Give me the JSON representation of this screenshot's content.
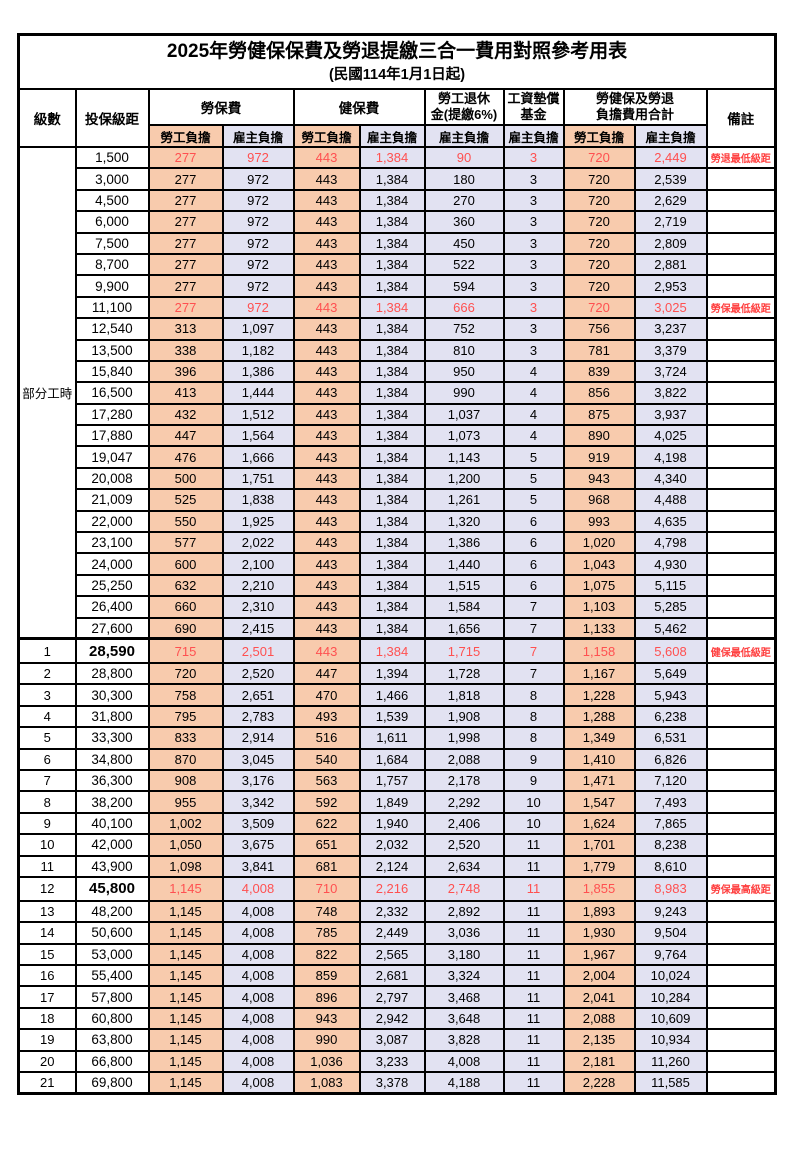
{
  "title": {
    "main": "2025年勞健保保費及勞退提繳三合一費用對照參考用表",
    "sub": "(民國114年1月1日起)"
  },
  "header": {
    "level": "級數",
    "bracket": "投保級距",
    "labor_ins": "勞保費",
    "health_ins": "健保費",
    "pension_l1": "勞工退休",
    "pension_l2": "金(提繳6%)",
    "wage_l1": "工資墊償",
    "wage_l2": "基金",
    "total_l1": "勞健保及勞退",
    "total_l2": "負擔費用合計",
    "remark": "備註",
    "employee": "勞工負擔",
    "employer": "雇主負擔"
  },
  "part_time_label": "部分工時",
  "part_time_rowspan": 23,
  "colors": {
    "employee_bg": "#F8CBAD",
    "employer_bg": "#E2E2F2",
    "highlight_number": "#FF5050",
    "remark_text": "#FF4040",
    "border": "#000000"
  },
  "rows": [
    {
      "level": "",
      "bracket": "1,500",
      "values": [
        "277",
        "972",
        "443",
        "1,384",
        "90",
        "3",
        "720",
        "2,449"
      ],
      "remark": "勞退最低級距",
      "red": true
    },
    {
      "level": "",
      "bracket": "3,000",
      "values": [
        "277",
        "972",
        "443",
        "1,384",
        "180",
        "3",
        "720",
        "2,539"
      ],
      "remark": ""
    },
    {
      "level": "",
      "bracket": "4,500",
      "values": [
        "277",
        "972",
        "443",
        "1,384",
        "270",
        "3",
        "720",
        "2,629"
      ],
      "remark": ""
    },
    {
      "level": "",
      "bracket": "6,000",
      "values": [
        "277",
        "972",
        "443",
        "1,384",
        "360",
        "3",
        "720",
        "2,719"
      ],
      "remark": ""
    },
    {
      "level": "",
      "bracket": "7,500",
      "values": [
        "277",
        "972",
        "443",
        "1,384",
        "450",
        "3",
        "720",
        "2,809"
      ],
      "remark": ""
    },
    {
      "level": "",
      "bracket": "8,700",
      "values": [
        "277",
        "972",
        "443",
        "1,384",
        "522",
        "3",
        "720",
        "2,881"
      ],
      "remark": ""
    },
    {
      "level": "",
      "bracket": "9,900",
      "values": [
        "277",
        "972",
        "443",
        "1,384",
        "594",
        "3",
        "720",
        "2,953"
      ],
      "remark": ""
    },
    {
      "level": "",
      "bracket": "11,100",
      "values": [
        "277",
        "972",
        "443",
        "1,384",
        "666",
        "3",
        "720",
        "3,025"
      ],
      "remark": "勞保最低級距",
      "red": true
    },
    {
      "level": "",
      "bracket": "12,540",
      "values": [
        "313",
        "1,097",
        "443",
        "1,384",
        "752",
        "3",
        "756",
        "3,237"
      ],
      "remark": ""
    },
    {
      "level": "",
      "bracket": "13,500",
      "values": [
        "338",
        "1,182",
        "443",
        "1,384",
        "810",
        "3",
        "781",
        "3,379"
      ],
      "remark": ""
    },
    {
      "level": "",
      "bracket": "15,840",
      "values": [
        "396",
        "1,386",
        "443",
        "1,384",
        "950",
        "4",
        "839",
        "3,724"
      ],
      "remark": ""
    },
    {
      "level": "",
      "bracket": "16,500",
      "values": [
        "413",
        "1,444",
        "443",
        "1,384",
        "990",
        "4",
        "856",
        "3,822"
      ],
      "remark": ""
    },
    {
      "level": "",
      "bracket": "17,280",
      "values": [
        "432",
        "1,512",
        "443",
        "1,384",
        "1,037",
        "4",
        "875",
        "3,937"
      ],
      "remark": ""
    },
    {
      "level": "",
      "bracket": "17,880",
      "values": [
        "447",
        "1,564",
        "443",
        "1,384",
        "1,073",
        "4",
        "890",
        "4,025"
      ],
      "remark": ""
    },
    {
      "level": "",
      "bracket": "19,047",
      "values": [
        "476",
        "1,666",
        "443",
        "1,384",
        "1,143",
        "5",
        "919",
        "4,198"
      ],
      "remark": ""
    },
    {
      "level": "",
      "bracket": "20,008",
      "values": [
        "500",
        "1,751",
        "443",
        "1,384",
        "1,200",
        "5",
        "943",
        "4,340"
      ],
      "remark": ""
    },
    {
      "level": "",
      "bracket": "21,009",
      "values": [
        "525",
        "1,838",
        "443",
        "1,384",
        "1,261",
        "5",
        "968",
        "4,488"
      ],
      "remark": ""
    },
    {
      "level": "",
      "bracket": "22,000",
      "values": [
        "550",
        "1,925",
        "443",
        "1,384",
        "1,320",
        "6",
        "993",
        "4,635"
      ],
      "remark": ""
    },
    {
      "level": "",
      "bracket": "23,100",
      "values": [
        "577",
        "2,022",
        "443",
        "1,384",
        "1,386",
        "6",
        "1,020",
        "4,798"
      ],
      "remark": ""
    },
    {
      "level": "",
      "bracket": "24,000",
      "values": [
        "600",
        "2,100",
        "443",
        "1,384",
        "1,440",
        "6",
        "1,043",
        "4,930"
      ],
      "remark": ""
    },
    {
      "level": "",
      "bracket": "25,250",
      "values": [
        "632",
        "2,210",
        "443",
        "1,384",
        "1,515",
        "6",
        "1,075",
        "5,115"
      ],
      "remark": ""
    },
    {
      "level": "",
      "bracket": "26,400",
      "values": [
        "660",
        "2,310",
        "443",
        "1,384",
        "1,584",
        "7",
        "1,103",
        "5,285"
      ],
      "remark": ""
    },
    {
      "level": "",
      "bracket": "27,600",
      "values": [
        "690",
        "2,415",
        "443",
        "1,384",
        "1,656",
        "7",
        "1,133",
        "5,462"
      ],
      "remark": ""
    },
    {
      "level": "1",
      "bracket": "28,590",
      "values": [
        "715",
        "2,501",
        "443",
        "1,384",
        "1,715",
        "7",
        "1,158",
        "5,608"
      ],
      "remark": "健保最低級距",
      "red": true,
      "bold": true,
      "sep": true
    },
    {
      "level": "2",
      "bracket": "28,800",
      "values": [
        "720",
        "2,520",
        "447",
        "1,394",
        "1,728",
        "7",
        "1,167",
        "5,649"
      ],
      "remark": ""
    },
    {
      "level": "3",
      "bracket": "30,300",
      "values": [
        "758",
        "2,651",
        "470",
        "1,466",
        "1,818",
        "8",
        "1,228",
        "5,943"
      ],
      "remark": ""
    },
    {
      "level": "4",
      "bracket": "31,800",
      "values": [
        "795",
        "2,783",
        "493",
        "1,539",
        "1,908",
        "8",
        "1,288",
        "6,238"
      ],
      "remark": ""
    },
    {
      "level": "5",
      "bracket": "33,300",
      "values": [
        "833",
        "2,914",
        "516",
        "1,611",
        "1,998",
        "8",
        "1,349",
        "6,531"
      ],
      "remark": ""
    },
    {
      "level": "6",
      "bracket": "34,800",
      "values": [
        "870",
        "3,045",
        "540",
        "1,684",
        "2,088",
        "9",
        "1,410",
        "6,826"
      ],
      "remark": ""
    },
    {
      "level": "7",
      "bracket": "36,300",
      "values": [
        "908",
        "3,176",
        "563",
        "1,757",
        "2,178",
        "9",
        "1,471",
        "7,120"
      ],
      "remark": ""
    },
    {
      "level": "8",
      "bracket": "38,200",
      "values": [
        "955",
        "3,342",
        "592",
        "1,849",
        "2,292",
        "10",
        "1,547",
        "7,493"
      ],
      "remark": ""
    },
    {
      "level": "9",
      "bracket": "40,100",
      "values": [
        "1,002",
        "3,509",
        "622",
        "1,940",
        "2,406",
        "10",
        "1,624",
        "7,865"
      ],
      "remark": ""
    },
    {
      "level": "10",
      "bracket": "42,000",
      "values": [
        "1,050",
        "3,675",
        "651",
        "2,032",
        "2,520",
        "11",
        "1,701",
        "8,238"
      ],
      "remark": ""
    },
    {
      "level": "11",
      "bracket": "43,900",
      "values": [
        "1,098",
        "3,841",
        "681",
        "2,124",
        "2,634",
        "11",
        "1,779",
        "8,610"
      ],
      "remark": ""
    },
    {
      "level": "12",
      "bracket": "45,800",
      "values": [
        "1,145",
        "4,008",
        "710",
        "2,216",
        "2,748",
        "11",
        "1,855",
        "8,983"
      ],
      "remark": "勞保最高級距",
      "red": true,
      "bold": true
    },
    {
      "level": "13",
      "bracket": "48,200",
      "values": [
        "1,145",
        "4,008",
        "748",
        "2,332",
        "2,892",
        "11",
        "1,893",
        "9,243"
      ],
      "remark": ""
    },
    {
      "level": "14",
      "bracket": "50,600",
      "values": [
        "1,145",
        "4,008",
        "785",
        "2,449",
        "3,036",
        "11",
        "1,930",
        "9,504"
      ],
      "remark": ""
    },
    {
      "level": "15",
      "bracket": "53,000",
      "values": [
        "1,145",
        "4,008",
        "822",
        "2,565",
        "3,180",
        "11",
        "1,967",
        "9,764"
      ],
      "remark": ""
    },
    {
      "level": "16",
      "bracket": "55,400",
      "values": [
        "1,145",
        "4,008",
        "859",
        "2,681",
        "3,324",
        "11",
        "2,004",
        "10,024"
      ],
      "remark": ""
    },
    {
      "level": "17",
      "bracket": "57,800",
      "values": [
        "1,145",
        "4,008",
        "896",
        "2,797",
        "3,468",
        "11",
        "2,041",
        "10,284"
      ],
      "remark": ""
    },
    {
      "level": "18",
      "bracket": "60,800",
      "values": [
        "1,145",
        "4,008",
        "943",
        "2,942",
        "3,648",
        "11",
        "2,088",
        "10,609"
      ],
      "remark": ""
    },
    {
      "level": "19",
      "bracket": "63,800",
      "values": [
        "1,145",
        "4,008",
        "990",
        "3,087",
        "3,828",
        "11",
        "2,135",
        "10,934"
      ],
      "remark": ""
    },
    {
      "level": "20",
      "bracket": "66,800",
      "values": [
        "1,145",
        "4,008",
        "1,036",
        "3,233",
        "4,008",
        "11",
        "2,181",
        "11,260"
      ],
      "remark": ""
    },
    {
      "level": "21",
      "bracket": "69,800",
      "values": [
        "1,145",
        "4,008",
        "1,083",
        "3,378",
        "4,188",
        "11",
        "2,228",
        "11,585"
      ],
      "remark": ""
    }
  ]
}
